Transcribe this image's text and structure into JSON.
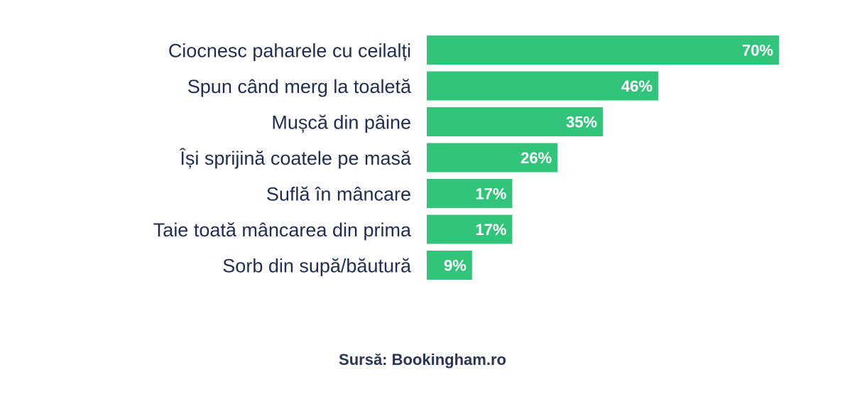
{
  "chart_data": {
    "type": "bar",
    "orientation": "horizontal",
    "categories": [
      "Ciocnesc paharele cu ceilalți",
      "Spun când merg la toaletă",
      "Mușcă din pâine",
      "Își sprijină coatele pe masă",
      "Suflă în mâncare",
      "Taie toată mâncarea din prima",
      "Sorb din supă/băutură"
    ],
    "values": [
      70,
      46,
      35,
      26,
      17,
      17,
      9
    ],
    "value_labels": [
      "70%",
      "46%",
      "35%",
      "26%",
      "17%",
      "17%",
      "9%"
    ],
    "unit": "%",
    "xlim": [
      0,
      70
    ],
    "grid": false,
    "legend": "none",
    "colors": {
      "bar": "#33c47b",
      "label": "#1f2d4e",
      "value_text": "#ffffff"
    }
  },
  "source": "Sursă: Bookingham.ro"
}
